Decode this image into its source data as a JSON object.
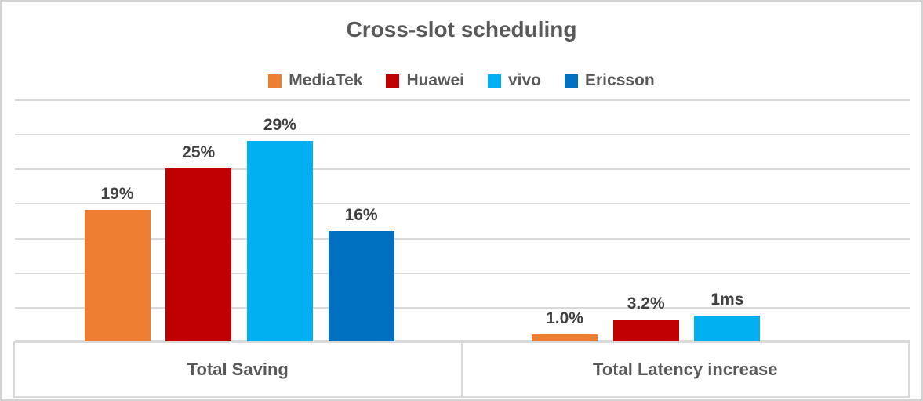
{
  "title": "Cross-slot scheduling",
  "legend": {
    "items": [
      {
        "label": "MediaTek",
        "color": "#ED7D31"
      },
      {
        "label": "Huawei",
        "color": "#C00000"
      },
      {
        "label": "vivo",
        "color": "#00B0F0"
      },
      {
        "label": "Ericsson",
        "color": "#0070C0"
      }
    ]
  },
  "chart_data": {
    "type": "bar",
    "title": "Cross-slot scheduling",
    "categories": [
      "Total Saving",
      "Total Latency increase"
    ],
    "series": [
      {
        "name": "MediaTek",
        "color": "#ED7D31",
        "values": [
          19,
          1.0
        ],
        "labels": [
          "19%",
          "1.0%"
        ]
      },
      {
        "name": "Huawei",
        "color": "#C00000",
        "values": [
          25,
          3.2
        ],
        "labels": [
          "25%",
          "3.2%"
        ]
      },
      {
        "name": "vivo",
        "color": "#00B0F0",
        "values": [
          29,
          3.7
        ],
        "labels": [
          "29%",
          "1ms"
        ]
      },
      {
        "name": "Ericsson",
        "color": "#0070C0",
        "values": [
          16,
          null
        ],
        "labels": [
          "16%",
          null
        ]
      }
    ],
    "ylim": [
      0,
      35
    ],
    "gridline_step": 5,
    "grid": true,
    "y_axis_labels_visible": false,
    "legend_position": "top",
    "data_labels_visible": true
  },
  "colors": {
    "gridline": "#D9D9D9",
    "panel_border": "#D9D9D9",
    "outer_border": "#D3D3D3",
    "title_text": "#595959",
    "data_label_text": "#404040",
    "category_text": "#595959",
    "background": "#FFFFFF"
  }
}
